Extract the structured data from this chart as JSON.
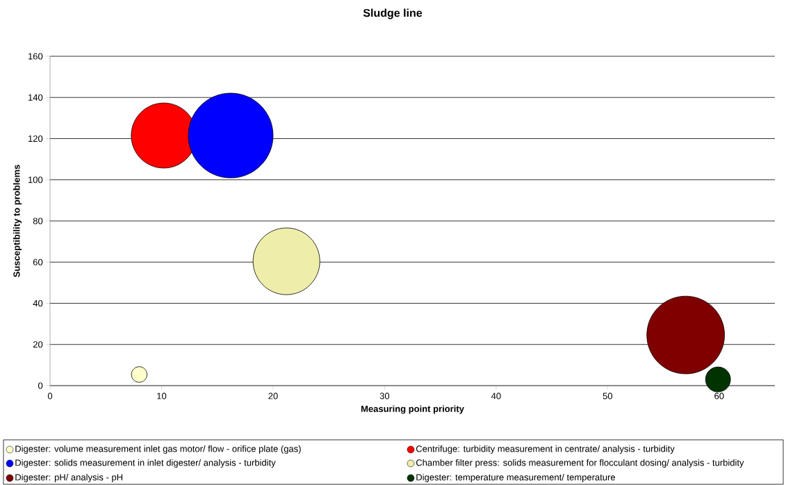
{
  "chart_data": {
    "type": "bubble",
    "title": "Sludge line",
    "xlabel": "Measuring point priority",
    "ylabel": "Susceptibility to problems",
    "xlim": [
      0,
      65
    ],
    "xticks": [
      0,
      10,
      20,
      30,
      40,
      50,
      60
    ],
    "ylim": [
      0,
      160
    ],
    "yticks": [
      0,
      20,
      40,
      60,
      80,
      100,
      120,
      140,
      160
    ],
    "grid": "y",
    "legend": "bottom",
    "marker": "circle",
    "series": [
      {
        "name": "Digester: volume measurement inlet gas motor/ flow - orifice plate (gas)",
        "color": "#ffffcc",
        "x": [
          8
        ],
        "values": [
          5.4
        ],
        "sizes": [
          0.034
        ]
      },
      {
        "name": "Centrifuge: turbidity measurement in centrate/ analysis - turbidity",
        "color": "#ff0000",
        "x": [
          10.2
        ],
        "values": [
          121.5
        ],
        "sizes": [
          0.59
        ]
      },
      {
        "name": "Digester: solids measurement in inlet digester/ analysis - turbidity",
        "color": "#0000ff",
        "x": [
          16.2
        ],
        "values": [
          121.5
        ],
        "sizes": [
          1
        ]
      },
      {
        "name": "Chamber filter press: solids measurement for flocculant dosing/ analysis - turbidity",
        "color": "#eeeeaa",
        "x": [
          21.2
        ],
        "values": [
          60.4
        ],
        "sizes": [
          0.62
        ]
      },
      {
        "name": "Digester: pH/ analysis - pH",
        "color": "#800000",
        "x": [
          57
        ],
        "values": [
          24.6
        ],
        "sizes": [
          0.84
        ]
      },
      {
        "name": "Digester: temperature measurement/ temperature",
        "color": "#003300",
        "x": [
          59.9
        ],
        "values": [
          3
        ],
        "sizes": [
          0.087
        ]
      }
    ]
  }
}
